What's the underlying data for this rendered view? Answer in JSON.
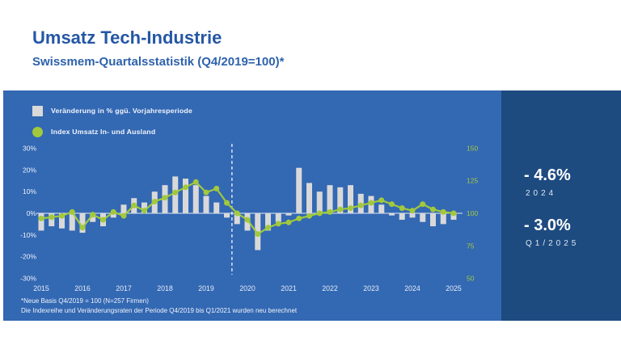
{
  "header": {
    "title": "Umsatz Tech-Industrie",
    "subtitle": "Swissmem-Quartalsstatistik (Q4/2019=100)*"
  },
  "legend": [
    {
      "label": "Veränderung in % ggü. Vorjahresperiode",
      "color": "#d9d9d9"
    },
    {
      "label": "Index Umsatz In- und Ausland",
      "color": "#a2c93c"
    }
  ],
  "annotations": {
    "value_2024": "- 4.6%",
    "label_2024": "2024",
    "value_q1_2025": "- 3.0%",
    "label_q1_2025": "Q1/2025"
  },
  "footnotes": {
    "line1": "*Neue Basis Q4/2019 = 100 (N=257 Firmen)",
    "line2": "Die Indexreihe und Veränderungsraten der Periode Q4/2019 bis Q1/2021 wurden neu berechnet"
  },
  "colors": {
    "panel_blue": "#3368b3",
    "panel_dark_blue": "#1d4b80",
    "title_blue": "#2457a4",
    "bar_gray": "#d9d9d9",
    "line_green": "#a2c93c",
    "axis_text_light": "#eef3fa",
    "axis_text_green": "#a6cb3f"
  },
  "chart_data": {
    "type": "bar",
    "subtype": "combo-bar-line",
    "x_start": "Q1/2015",
    "x_end": "Q1/2025",
    "years": [
      2015,
      2016,
      2017,
      2018,
      2019,
      2020,
      2021,
      2022,
      2023,
      2024,
      2025
    ],
    "series": [
      {
        "name": "Veränderung in % ggü. Vorjahresperiode",
        "kind": "bar",
        "axis": "left",
        "unit": "%",
        "color": "#d9d9d9",
        "values": [
          -8,
          -6,
          -7,
          -8,
          -9,
          -4,
          -6,
          -2,
          4,
          7,
          5,
          10,
          13,
          17,
          16,
          13,
          8,
          5,
          -2,
          -5,
          -8,
          -17,
          -8,
          -4,
          -1,
          21,
          14,
          10,
          13,
          12,
          13,
          9,
          8,
          4,
          -1,
          -3,
          -2,
          -4,
          -6,
          -5,
          -3
        ]
      },
      {
        "name": "Index Umsatz In- und Ausland",
        "kind": "line",
        "axis": "right",
        "unit": "index (Q4/2019=100)",
        "color": "#a2c93c",
        "values": [
          96,
          97,
          98,
          101,
          89,
          99,
          95,
          101,
          98,
          106,
          102,
          109,
          112,
          116,
          120,
          124,
          116,
          119,
          108,
          100,
          95,
          84,
          89,
          92,
          93,
          96,
          98,
          100,
          101,
          103,
          104,
          106,
          108,
          110,
          107,
          104,
          102,
          107,
          103,
          101,
          100
        ]
      }
    ],
    "left_axis": {
      "ticks": [
        "30%",
        "20%",
        "10%",
        "0%",
        "-10%",
        "-20%",
        "-30%"
      ],
      "min": -30,
      "max": 30
    },
    "right_axis": {
      "ticks": [
        150,
        125,
        100,
        75,
        50
      ],
      "min": 50,
      "max": 150
    },
    "dashed_line": {
      "between": [
        "Q3/2019",
        "Q4/2019"
      ],
      "meaning": "Neue Basis Q4/2019 = 100"
    },
    "grid": false,
    "legend_position": "top-left"
  }
}
